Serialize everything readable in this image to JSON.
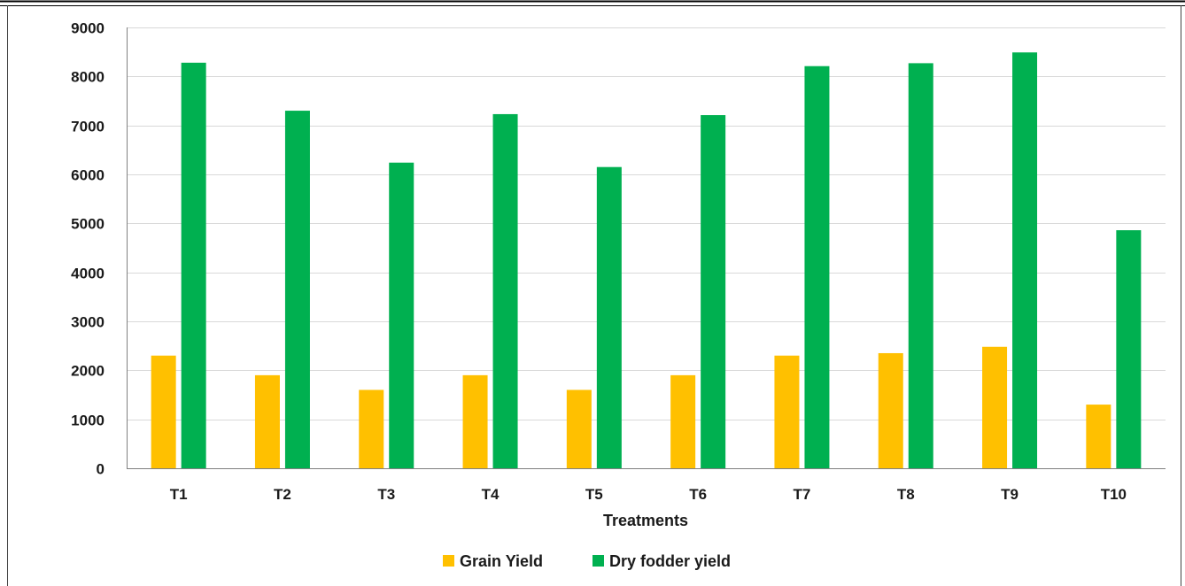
{
  "chart_data": {
    "type": "bar",
    "title": "",
    "xlabel": "Treatments",
    "ylabel": "",
    "categories": [
      "T1",
      "T2",
      "T3",
      "T4",
      "T5",
      "T6",
      "T7",
      "T8",
      "T9",
      "T10"
    ],
    "series": [
      {
        "name": "Grain Yield",
        "color": "#FFC000",
        "values": [
          2300,
          1900,
          1600,
          1900,
          1600,
          1900,
          2300,
          2350,
          2480,
          1300
        ]
      },
      {
        "name": "Dry fodder yield",
        "color": "#00B050",
        "values": [
          8280,
          7300,
          6240,
          7230,
          6150,
          7210,
          8210,
          8270,
          8490,
          4860
        ]
      }
    ],
    "ylim": [
      0,
      9000
    ],
    "yticks": [
      0,
      1000,
      2000,
      3000,
      4000,
      5000,
      6000,
      7000,
      8000,
      9000
    ],
    "grid": true,
    "legend_position": "bottom"
  }
}
